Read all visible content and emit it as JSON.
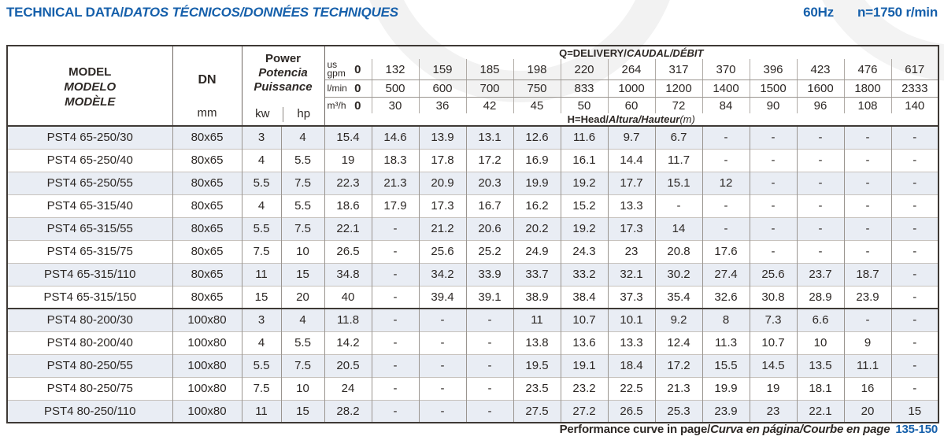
{
  "page": {
    "title_bold": "TECHNICAL DATA/",
    "title_italic": "DATOS TÉCNICOS/DONNÉES TECHNIQUES",
    "frequency": "60Hz",
    "speed": "n=1750 r/min",
    "accent_color": "#1660ab",
    "row_alt_color": "#e9edf4"
  },
  "table": {
    "model_header": [
      "MODEL",
      "MODELO",
      "MODÈLE"
    ],
    "dn": {
      "label": "DN",
      "unit": "mm"
    },
    "power": {
      "labels": [
        "Power",
        "Potencia",
        "Puissance"
      ],
      "units": [
        "kw",
        "hp"
      ]
    },
    "delivery": {
      "bold": "Q=DELIVERY/",
      "italic": "CAUDAL/DÉBIT"
    },
    "head": {
      "bold": "H=Head/",
      "italic": "Altura/Hauteur",
      "unit": "(m)"
    },
    "unit_rows": [
      {
        "name": "us-gpm",
        "label_lines": [
          "us",
          "gpm"
        ],
        "values": [
          "0",
          "132",
          "159",
          "185",
          "198",
          "220",
          "264",
          "317",
          "370",
          "396",
          "423",
          "476",
          "617"
        ]
      },
      {
        "name": "l-min",
        "label_lines": [
          "l/min"
        ],
        "values": [
          "0",
          "500",
          "600",
          "700",
          "750",
          "833",
          "1000",
          "1200",
          "1400",
          "1500",
          "1600",
          "1800",
          "2333"
        ]
      },
      {
        "name": "m3-h",
        "label_lines": [
          "m³/h"
        ],
        "values": [
          "0",
          "30",
          "36",
          "42",
          "45",
          "50",
          "60",
          "72",
          "84",
          "90",
          "96",
          "108",
          "140"
        ]
      }
    ],
    "rows": [
      {
        "model": "PST4 65-250/30",
        "dn": "80x65",
        "kw": "3",
        "hp": "4",
        "head": [
          "15.4",
          "14.6",
          "13.9",
          "13.1",
          "12.6",
          "11.6",
          "9.7",
          "6.7",
          "-",
          "-",
          "-",
          "-",
          "-"
        ]
      },
      {
        "model": "PST4 65-250/40",
        "dn": "80x65",
        "kw": "4",
        "hp": "5.5",
        "head": [
          "19",
          "18.3",
          "17.8",
          "17.2",
          "16.9",
          "16.1",
          "14.4",
          "11.7",
          "-",
          "-",
          "-",
          "-",
          "-"
        ]
      },
      {
        "model": "PST4 65-250/55",
        "dn": "80x65",
        "kw": "5.5",
        "hp": "7.5",
        "head": [
          "22.3",
          "21.3",
          "20.9",
          "20.3",
          "19.9",
          "19.2",
          "17.7",
          "15.1",
          "12",
          "-",
          "-",
          "-",
          "-"
        ]
      },
      {
        "model": "PST4 65-315/40",
        "dn": "80x65",
        "kw": "4",
        "hp": "5.5",
        "head": [
          "18.6",
          "17.9",
          "17.3",
          "16.7",
          "16.2",
          "15.2",
          "13.3",
          "-",
          "-",
          "-",
          "-",
          "-",
          "-"
        ]
      },
      {
        "model": "PST4 65-315/55",
        "dn": "80x65",
        "kw": "5.5",
        "hp": "7.5",
        "head": [
          "22.1",
          "-",
          "21.2",
          "20.6",
          "20.2",
          "19.2",
          "17.3",
          "14",
          "-",
          "-",
          "-",
          "-",
          "-"
        ]
      },
      {
        "model": "PST4 65-315/75",
        "dn": "80x65",
        "kw": "7.5",
        "hp": "10",
        "head": [
          "26.5",
          "-",
          "25.6",
          "25.2",
          "24.9",
          "24.3",
          "23",
          "20.8",
          "17.6",
          "-",
          "-",
          "-",
          "-"
        ]
      },
      {
        "model": "PST4 65-315/110",
        "dn": "80x65",
        "kw": "11",
        "hp": "15",
        "head": [
          "34.8",
          "-",
          "34.2",
          "33.9",
          "33.7",
          "33.2",
          "32.1",
          "30.2",
          "27.4",
          "25.6",
          "23.7",
          "18.7",
          "-"
        ]
      },
      {
        "model": "PST4 65-315/150",
        "dn": "80x65",
        "kw": "15",
        "hp": "20",
        "head": [
          "40",
          "-",
          "39.4",
          "39.1",
          "38.9",
          "38.4",
          "37.3",
          "35.4",
          "32.6",
          "30.8",
          "28.9",
          "23.9",
          "-"
        ]
      },
      {
        "model": "PST4 80-200/30",
        "dn": "100x80",
        "kw": "3",
        "hp": "4",
        "group_start": true,
        "head": [
          "11.8",
          "-",
          "-",
          "-",
          "11",
          "10.7",
          "10.1",
          "9.2",
          "8",
          "7.3",
          "6.6",
          "-",
          "-"
        ]
      },
      {
        "model": "PST4 80-200/40",
        "dn": "100x80",
        "kw": "4",
        "hp": "5.5",
        "head": [
          "14.2",
          "-",
          "-",
          "-",
          "13.8",
          "13.6",
          "13.3",
          "12.4",
          "11.3",
          "10.7",
          "10",
          "9",
          "-"
        ]
      },
      {
        "model": "PST4 80-250/55",
        "dn": "100x80",
        "kw": "5.5",
        "hp": "7.5",
        "head": [
          "20.5",
          "-",
          "-",
          "-",
          "19.5",
          "19.1",
          "18.4",
          "17.2",
          "15.5",
          "14.5",
          "13.5",
          "11.1",
          "-"
        ]
      },
      {
        "model": "PST4 80-250/75",
        "dn": "100x80",
        "kw": "7.5",
        "hp": "10",
        "head": [
          "24",
          "-",
          "-",
          "-",
          "23.5",
          "23.2",
          "22.5",
          "21.3",
          "19.9",
          "19",
          "18.1",
          "16",
          "-"
        ]
      },
      {
        "model": "PST4 80-250/110",
        "dn": "100x80",
        "kw": "11",
        "hp": "15",
        "head": [
          "28.2",
          "-",
          "-",
          "-",
          "27.5",
          "27.2",
          "26.5",
          "25.3",
          "23.9",
          "23",
          "22.1",
          "20",
          "15"
        ]
      }
    ]
  },
  "footer": {
    "bold": "Performance curve in page/",
    "italic": "Curva en página/Courbe en page",
    "pages": "135-150"
  }
}
